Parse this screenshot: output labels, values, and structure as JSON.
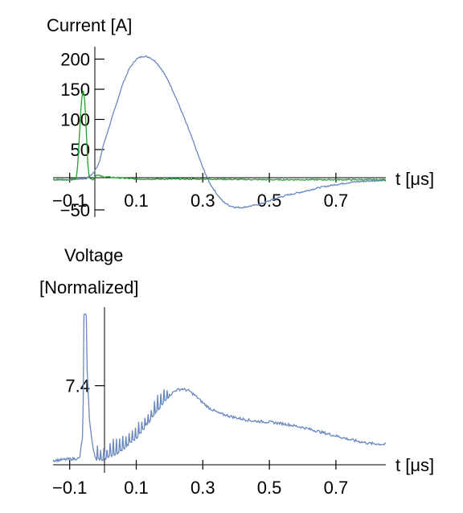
{
  "chart_data": [
    {
      "type": "line",
      "title": "",
      "ylabel": "Current [A]",
      "xlabel": "t [μs]",
      "x_ticks": [
        "−0.1",
        "0.1",
        "0.3",
        "0.5",
        "0.7"
      ],
      "x_tick_values": [
        -0.1,
        0.1,
        0.3,
        0.5,
        0.7
      ],
      "y_ticks": [
        "200",
        "150",
        "100",
        "50",
        "−50"
      ],
      "y_tick_values": [
        200,
        150,
        100,
        50,
        -50
      ],
      "xlim": [
        -0.15,
        0.85
      ],
      "ylim": [
        -50,
        210
      ],
      "grid": false,
      "series": [
        {
          "color": "#6a88bd",
          "x": [
            -0.15,
            -0.1,
            -0.05,
            -0.03,
            -0.01,
            0.0,
            0.02,
            0.04,
            0.06,
            0.08,
            0.1,
            0.12,
            0.14,
            0.16,
            0.18,
            0.2,
            0.22,
            0.24,
            0.26,
            0.28,
            0.3,
            0.32,
            0.34,
            0.36,
            0.38,
            0.4,
            0.42,
            0.44,
            0.46,
            0.48,
            0.5,
            0.52,
            0.55,
            0.6,
            0.65,
            0.7,
            0.75,
            0.8,
            0.85
          ],
          "y": [
            0,
            0,
            2,
            10,
            30,
            55,
            90,
            125,
            160,
            185,
            200,
            205,
            203,
            195,
            180,
            160,
            135,
            108,
            80,
            50,
            20,
            -5,
            -22,
            -36,
            -43,
            -46,
            -46,
            -44,
            -42,
            -39,
            -35,
            -31,
            -26,
            -20,
            -13,
            -8,
            -4,
            -2,
            -1
          ]
        },
        {
          "color": "#21a32c",
          "x": [
            -0.15,
            -0.1,
            -0.08,
            -0.075,
            -0.07,
            -0.065,
            -0.06,
            -0.055,
            -0.05,
            -0.045,
            -0.04,
            -0.03,
            -0.02,
            0.0,
            0.1,
            0.3,
            0.5,
            0.7,
            0.85
          ],
          "y": [
            0,
            0,
            2,
            30,
            80,
            130,
            148,
            135,
            80,
            20,
            3,
            0,
            8,
            5,
            1,
            1,
            0,
            0,
            0
          ]
        }
      ]
    },
    {
      "type": "line",
      "title": "",
      "ylabel_lines": [
        "Voltage",
        "[Normalized]"
      ],
      "xlabel": "t [μs]",
      "x_ticks": [
        "−0.1",
        "0.1",
        "0.3",
        "0.5",
        "0.7"
      ],
      "x_tick_values": [
        -0.1,
        0.1,
        0.3,
        0.5,
        0.7
      ],
      "y_ticks": [
        "7.4"
      ],
      "y_tick_values": [
        7.4
      ],
      "xlim": [
        -0.15,
        0.85
      ],
      "ylim": [
        0,
        14
      ],
      "grid": false,
      "series": [
        {
          "color": "#6a88bd",
          "x": [
            -0.15,
            -0.07,
            -0.06,
            -0.058,
            -0.05,
            -0.048,
            -0.04,
            -0.03,
            -0.02,
            0.0,
            0.05,
            0.1,
            0.15,
            0.2,
            0.22,
            0.24,
            0.26,
            0.28,
            0.3,
            0.32,
            0.35,
            0.4,
            0.45,
            0.5,
            0.55,
            0.6,
            0.65,
            0.7,
            0.75,
            0.8,
            0.85
          ],
          "y": [
            0.4,
            0.6,
            3.0,
            14.0,
            14.0,
            9.0,
            4.0,
            1.5,
            0.5,
            0.5,
            1.2,
            2.5,
            4.5,
            6.5,
            7.0,
            7.1,
            6.9,
            6.4,
            5.8,
            5.3,
            4.8,
            4.4,
            4.1,
            4.0,
            3.8,
            3.5,
            3.1,
            2.7,
            2.3,
            2.0,
            1.9
          ]
        }
      ]
    }
  ]
}
